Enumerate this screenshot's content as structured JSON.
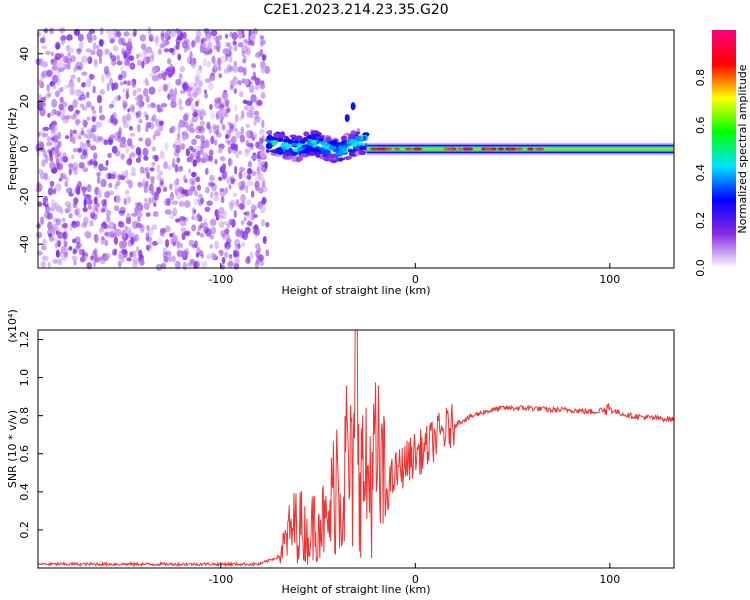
{
  "title": "C2E1.2023.214.23.35.G20",
  "chart_data": [
    {
      "type": "heatmap",
      "xlabel": "Height of straight line (km)",
      "ylabel": "Frequency (Hz)",
      "xlim": [
        -194,
        133
      ],
      "ylim": [
        -50,
        50
      ],
      "x_ticks": [
        "-100",
        "0",
        "100"
      ],
      "y_ticks": [
        "40",
        "20",
        "0",
        "-20",
        "-40"
      ],
      "colorbar": {
        "label": "Normalized spectral amplitude",
        "ticks": [
          "0.0",
          "0.2",
          "0.4",
          "0.6",
          "0.8"
        ],
        "range": [
          0,
          1
        ],
        "colors": [
          "#ffffff",
          "#8a2be2",
          "#0000ff",
          "#00e5ff",
          "#00ff00",
          "#ffff00",
          "#ff0000",
          "#ff0080"
        ]
      },
      "regions": [
        {
          "x": [
            -194,
            -76
          ],
          "description": "noise",
          "level": 0.08
        },
        {
          "x": [
            -76,
            -25
          ],
          "center_hz": [
            3,
            2,
            0,
            3,
            1,
            -1,
            2,
            4
          ],
          "width_hz": 5,
          "level": 0.45
        },
        {
          "x": [
            -25,
            133
          ],
          "center_hz": 0,
          "width_hz": 1.5,
          "level": 0.75
        }
      ],
      "spots": [
        {
          "x": -35,
          "y": 13
        },
        {
          "x": -32,
          "y": 18
        }
      ],
      "grid": false
    },
    {
      "type": "line",
      "xlabel": "Height of straight line (km)",
      "ylabel": "SNR (10 * v/v)",
      "multiplier": "(x10⁴)",
      "xlim": [
        -194,
        133
      ],
      "ylim": [
        0,
        1.25
      ],
      "x_ticks": [
        "-100",
        "0",
        "100"
      ],
      "y_ticks": [
        "0.2",
        "0.4",
        "0.6",
        "0.8",
        "1.0",
        "1.2"
      ],
      "color": "#ee3333",
      "x": [
        -194,
        -160,
        -120,
        -80,
        -70,
        -65,
        -60,
        -55,
        -50,
        -45,
        -40,
        -38,
        -35,
        -32,
        -30,
        -28,
        -25,
        -20,
        -15,
        -10,
        -5,
        0,
        5,
        10,
        15,
        20,
        25,
        30,
        35,
        40,
        45,
        50,
        60,
        70,
        80,
        90,
        100,
        110,
        120,
        133
      ],
      "y": [
        0.02,
        0.02,
        0.02,
        0.02,
        0.06,
        0.18,
        0.25,
        0.15,
        0.3,
        0.2,
        0.55,
        0.35,
        0.6,
        0.4,
        1.25,
        0.5,
        0.45,
        0.55,
        0.4,
        0.5,
        0.55,
        0.6,
        0.62,
        0.68,
        0.72,
        0.75,
        0.78,
        0.8,
        0.82,
        0.83,
        0.84,
        0.84,
        0.84,
        0.83,
        0.83,
        0.82,
        0.83,
        0.8,
        0.79,
        0.78
      ],
      "grid": false
    }
  ]
}
